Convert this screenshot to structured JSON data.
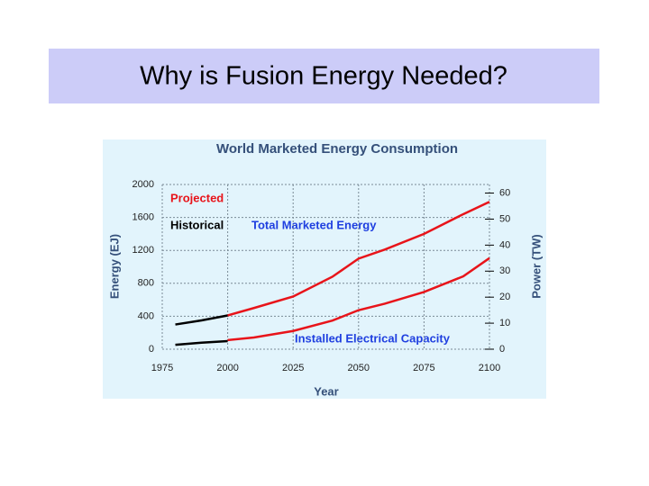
{
  "title": "Why is Fusion Energy Needed?",
  "chart_data": {
    "type": "line",
    "title": "World Marketed Energy Consumption",
    "x_label": "Year",
    "y_label": "Energy (EJ)",
    "y2_label": "Power (TW)",
    "x": [
      1980,
      1990,
      2000,
      2010,
      2025,
      2040,
      2050,
      2060,
      2075,
      2090,
      2100
    ],
    "series": [
      {
        "name": "Historical",
        "color": "#000000",
        "values": [
          300,
          350,
          410,
          null,
          null,
          null,
          null,
          null,
          null,
          null,
          null
        ]
      },
      {
        "name": "Projected",
        "color": "#e8141a",
        "values": [
          null,
          null,
          410,
          500,
          640,
          880,
          1100,
          1210,
          1400,
          1640,
          1790
        ]
      },
      {
        "color": "#000000",
        "axis": "y2",
        "values": [
          1.7,
          2.5,
          3.1,
          null,
          null,
          null,
          null,
          null,
          null,
          null,
          null
        ]
      },
      {
        "color": "#e8141a",
        "axis": "y2",
        "values": [
          null,
          null,
          3.5,
          4.5,
          7,
          11,
          15,
          17.5,
          22,
          28,
          35
        ]
      }
    ],
    "annotations": [
      {
        "text": "Total Marketed Energy",
        "color": "#1f3fe0"
      },
      {
        "text": "Installed Electrical Capacity",
        "color": "#1f3fe0"
      }
    ],
    "xlim": [
      1975,
      2100
    ],
    "xticks": [
      1975,
      2000,
      2025,
      2050,
      2075,
      2100
    ],
    "ylim": [
      0,
      2000
    ],
    "yticks": [
      0,
      400,
      800,
      1200,
      1600,
      2000
    ],
    "y2lim": [
      0,
      63.3
    ],
    "y2ticks": [
      0,
      10,
      20,
      30,
      40,
      50,
      60
    ],
    "grid": true
  }
}
